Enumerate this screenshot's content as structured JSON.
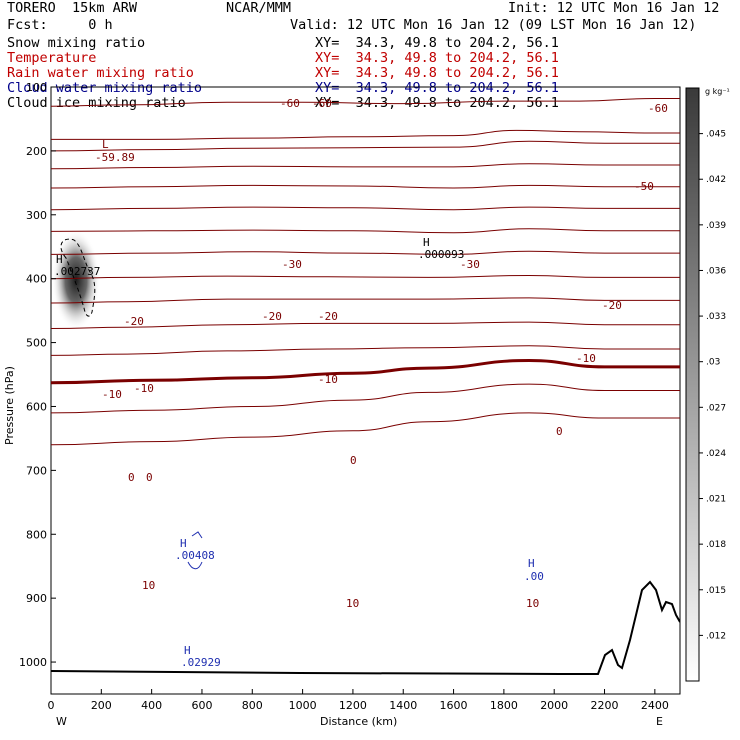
{
  "header": {
    "model": "TORERO  15km ARW",
    "center": "NCAR/MMM",
    "init": "Init: 12 UTC Mon 16 Jan 12",
    "fcst": "Fcst:     0 h",
    "valid": "Valid: 12 UTC Mon 16 Jan 12 (09 LST Mon 16 Jan 12)"
  },
  "fields": [
    {
      "name": "Snow mixing ratio",
      "xy": "XY=  34.3, 49.8 to 204.2, 56.1",
      "color": "#000000"
    },
    {
      "name": "Temperature",
      "xy": "XY=  34.3, 49.8 to 204.2, 56.1",
      "color": "#c00000"
    },
    {
      "name": "Rain water mixing ratio",
      "xy": "XY=  34.3, 49.8 to 204.2, 56.1",
      "color": "#c00000"
    },
    {
      "name": "Cloud water mixing ratio",
      "xy": "XY=  34.3, 49.8 to 204.2, 56.1",
      "color": "#00008b"
    },
    {
      "name": "Cloud ice mixing ratio",
      "xy": "XY=  34.3, 49.8 to 204.2, 56.1",
      "color": "#000000"
    }
  ],
  "colors": {
    "temperature": "#7a0000",
    "cloud_water": "#1f2fb0",
    "snow": "#000000"
  },
  "chart_data": {
    "type": "contour cross-section",
    "xlabel": "Distance (km)",
    "ylabel": "Pressure (hPa)",
    "xlim": [
      0,
      2500
    ],
    "ylim": [
      1050,
      100
    ],
    "xticks": [
      0,
      200,
      400,
      600,
      800,
      1000,
      1200,
      1400,
      1600,
      1800,
      2000,
      2200,
      2400
    ],
    "yticks": [
      100,
      200,
      300,
      400,
      500,
      600,
      700,
      800,
      900,
      1000
    ],
    "end_labels": {
      "left": "W",
      "right": "E"
    },
    "colorbar": {
      "unit": "g kg⁻¹",
      "ticks": [
        ".012",
        ".015",
        ".018",
        ".021",
        ".024",
        ".027",
        ".03",
        ".033",
        ".036",
        ".039",
        ".042",
        ".045"
      ],
      "values": [
        0.012,
        0.015,
        0.018,
        0.021,
        0.024,
        0.027,
        0.03,
        0.033,
        0.036,
        0.039,
        0.042,
        0.045
      ]
    },
    "temperature_contours": [
      {
        "level": -60,
        "points": [
          [
            0,
            130
          ],
          [
            300,
            128
          ],
          [
            700,
            124
          ],
          [
            1000,
            124
          ],
          [
            1400,
            126
          ],
          [
            1800,
            122
          ],
          [
            2100,
            122
          ],
          [
            2400,
            118
          ],
          [
            2500,
            118
          ]
        ]
      },
      {
        "level": -55,
        "points": [
          [
            0,
            182
          ],
          [
            400,
            182
          ],
          [
            800,
            180
          ],
          [
            1200,
            178
          ],
          [
            1600,
            176
          ],
          [
            1850,
            168
          ],
          [
            2100,
            170
          ],
          [
            2400,
            172
          ],
          [
            2500,
            172
          ]
        ]
      },
      {
        "level": -50,
        "points": [
          [
            0,
            200
          ],
          [
            400,
            198
          ],
          [
            800,
            196
          ],
          [
            1200,
            195
          ],
          [
            1600,
            194
          ],
          [
            1900,
            185
          ],
          [
            2200,
            188
          ],
          [
            2500,
            188
          ]
        ]
      },
      {
        "level": -45,
        "points": [
          [
            0,
            228
          ],
          [
            400,
            226
          ],
          [
            800,
            224
          ],
          [
            1200,
            225
          ],
          [
            1600,
            225
          ],
          [
            1900,
            220
          ],
          [
            2200,
            222
          ],
          [
            2500,
            222
          ]
        ]
      },
      {
        "level": -40,
        "points": [
          [
            0,
            258
          ],
          [
            400,
            256
          ],
          [
            800,
            254
          ],
          [
            1200,
            255
          ],
          [
            1600,
            258
          ],
          [
            1900,
            254
          ],
          [
            2200,
            256
          ],
          [
            2500,
            256
          ]
        ]
      },
      {
        "level": -35,
        "points": [
          [
            0,
            292
          ],
          [
            400,
            290
          ],
          [
            800,
            288
          ],
          [
            1200,
            289
          ],
          [
            1600,
            292
          ],
          [
            1900,
            288
          ],
          [
            2200,
            290
          ],
          [
            2500,
            290
          ]
        ]
      },
      {
        "level": -30,
        "points": [
          [
            0,
            326
          ],
          [
            400,
            325
          ],
          [
            800,
            324
          ],
          [
            1200,
            325
          ],
          [
            1600,
            328
          ],
          [
            1900,
            322
          ],
          [
            2200,
            325
          ],
          [
            2500,
            325
          ]
        ]
      },
      {
        "level": -25,
        "points": [
          [
            0,
            362
          ],
          [
            400,
            360
          ],
          [
            800,
            358
          ],
          [
            1200,
            360
          ],
          [
            1600,
            362
          ],
          [
            1900,
            357
          ],
          [
            2200,
            360
          ],
          [
            2500,
            360
          ]
        ]
      },
      {
        "level": -20,
        "points": [
          [
            0,
            400
          ],
          [
            300,
            398
          ],
          [
            700,
            396
          ],
          [
            1100,
            397
          ],
          [
            1500,
            398
          ],
          [
            1900,
            395
          ],
          [
            2200,
            398
          ],
          [
            2500,
            398
          ]
        ]
      },
      {
        "level": -15,
        "points": [
          [
            0,
            438
          ],
          [
            300,
            436
          ],
          [
            700,
            432
          ],
          [
            1100,
            432
          ],
          [
            1500,
            432
          ],
          [
            1900,
            430
          ],
          [
            2200,
            434
          ],
          [
            2500,
            434
          ]
        ]
      },
      {
        "level": -10,
        "points": [
          [
            0,
            478
          ],
          [
            300,
            476
          ],
          [
            700,
            472
          ],
          [
            1100,
            470
          ],
          [
            1500,
            470
          ],
          [
            1900,
            468
          ],
          [
            2200,
            472
          ],
          [
            2500,
            472
          ]
        ]
      },
      {
        "level": -5,
        "points": [
          [
            0,
            520
          ],
          [
            300,
            518
          ],
          [
            700,
            513
          ],
          [
            1100,
            510
          ],
          [
            1500,
            508
          ],
          [
            1900,
            505
          ],
          [
            2200,
            510
          ],
          [
            2500,
            510
          ]
        ]
      },
      {
        "level": 0,
        "points": [
          [
            0,
            563
          ],
          [
            400,
            559
          ],
          [
            800,
            555
          ],
          [
            1200,
            548
          ],
          [
            1500,
            540
          ],
          [
            1900,
            528
          ],
          [
            2200,
            538
          ],
          [
            2500,
            538
          ]
        ]
      },
      {
        "level": 5,
        "points": [
          [
            0,
            610
          ],
          [
            400,
            606
          ],
          [
            800,
            600
          ],
          [
            1200,
            590
          ],
          [
            1500,
            578
          ],
          [
            1900,
            565
          ],
          [
            2200,
            575
          ],
          [
            2500,
            575
          ]
        ]
      },
      {
        "level": 10,
        "points": [
          [
            0,
            660
          ],
          [
            400,
            655
          ],
          [
            800,
            648
          ],
          [
            1200,
            638
          ],
          [
            1500,
            624
          ],
          [
            1900,
            610
          ],
          [
            2200,
            618
          ],
          [
            2500,
            618
          ]
        ]
      }
    ]
  },
  "plot_labels": {
    "temp_labels": [
      "-60",
      "-60",
      "-60",
      "-50",
      "-30",
      "-30",
      "-20",
      "-20",
      "-20",
      "-20",
      "-10",
      "-10",
      "-10",
      "-10",
      "0",
      "0",
      "0",
      "0",
      "10",
      "10",
      "10"
    ],
    "low_label": "L",
    "low_value": "-59.89",
    "snow_high_label": "H",
    "snow_high_value": ".002737",
    "ice_high_label": "H",
    "ice_high_value": ".000093",
    "cw_high_label_1": "H",
    "cw_high_value_1": ".00408",
    "cw_high_label_2": "H",
    "cw_high_value_2": ".00",
    "cw_high_label_3": "H",
    "cw_high_value_3": ".02929"
  }
}
